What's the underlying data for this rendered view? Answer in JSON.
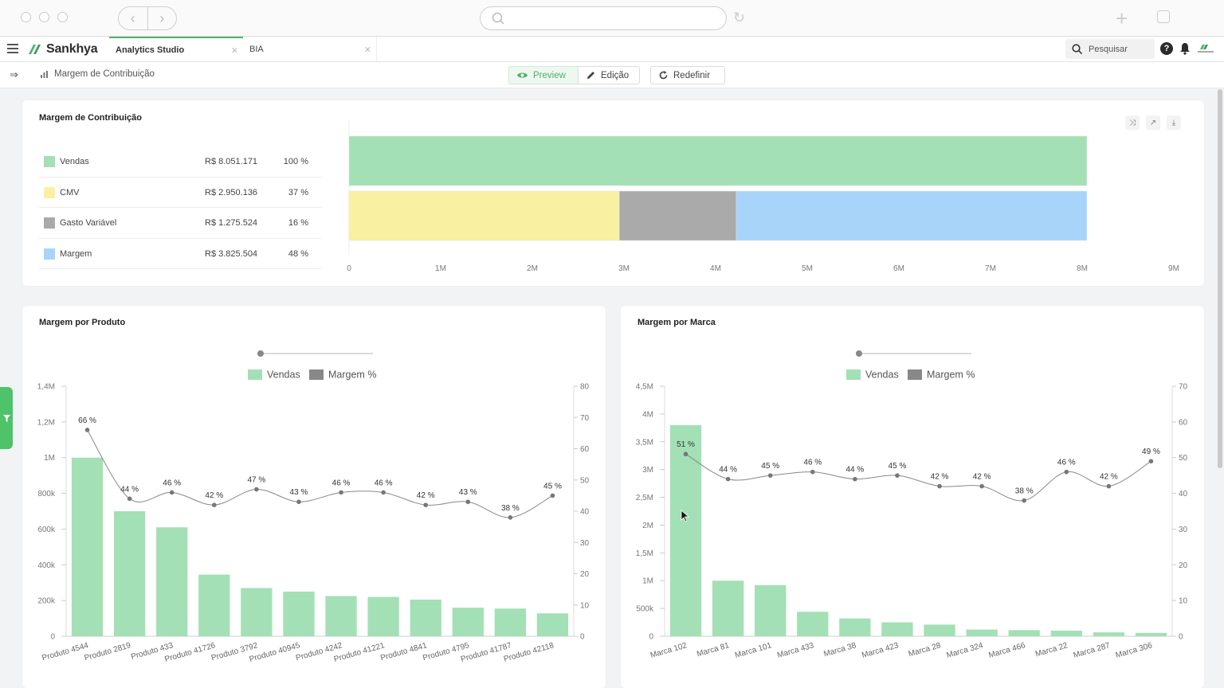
{
  "app": {
    "brand": "Sankhya",
    "tabs": [
      {
        "label": "Analytics Studio",
        "active": true
      },
      {
        "label": "BIA",
        "active": false
      }
    ],
    "search_placeholder": "Pesquisar"
  },
  "toolbar": {
    "breadcrumb": "Margem de Contribuição",
    "preview_label": "Preview",
    "edit_label": "Edição",
    "reset_label": "Redefinir"
  },
  "colors": {
    "vendas": "#a3e0b5",
    "cmv": "#faf0a2",
    "gasto": "#aaaaaa",
    "margem": "#a8d4fa",
    "accent": "#4fb36a",
    "line": "#888888"
  },
  "summary": {
    "title": "Margem de Contribuição",
    "rows": [
      {
        "name": "Vendas",
        "value": "R$ 8.051.171",
        "pct": "100 %",
        "color": "#a3e0b5"
      },
      {
        "name": "CMV",
        "value": "R$ 2.950.136",
        "pct": "37 %",
        "color": "#faf0a2"
      },
      {
        "name": "Gasto Variável",
        "value": "R$ 1.275.524",
        "pct": "16 %",
        "color": "#aaaaaa"
      },
      {
        "name": "Margem",
        "value": "R$ 3.825.504",
        "pct": "48 %",
        "color": "#a8d4fa"
      }
    ]
  },
  "chart_data": [
    {
      "type": "bar",
      "title": "Margem de Contribuição",
      "orientation": "horizontal",
      "stacked_rows": [
        [
          {
            "name": "Vendas",
            "value": 8051171
          }
        ],
        [
          {
            "name": "CMV",
            "value": 2950136
          },
          {
            "name": "Gasto Variável",
            "value": 1275524
          },
          {
            "name": "Margem",
            "value": 3825504
          }
        ]
      ],
      "xlim": [
        0,
        9000000
      ],
      "xticks": [
        "0",
        "1M",
        "2M",
        "3M",
        "4M",
        "5M",
        "6M",
        "7M",
        "8M",
        "9M"
      ]
    },
    {
      "type": "bar",
      "title": "Margem por Produto",
      "legend": [
        "Vendas",
        "Margem %"
      ],
      "categories": [
        "Produto 4544",
        "Produto 2819",
        "Produto 433",
        "Produto 41726",
        "Produto 3792",
        "Produto 40945",
        "Produto 4242",
        "Produto 41221",
        "Produto 4841",
        "Produto 4795",
        "Produto 41787",
        "Produto 42118"
      ],
      "series": [
        {
          "name": "Vendas",
          "kind": "bar",
          "values": [
            1000000,
            700000,
            610000,
            345000,
            270000,
            250000,
            225000,
            220000,
            205000,
            160000,
            155000,
            128000
          ]
        },
        {
          "name": "Margem %",
          "kind": "line",
          "values": [
            66,
            44,
            46,
            42,
            47,
            43,
            46,
            46,
            42,
            43,
            38,
            45
          ],
          "labels": [
            "66 %",
            "44 %",
            "46 %",
            "42 %",
            "47 %",
            "43 %",
            "46 %",
            "46 %",
            "42 %",
            "43 %",
            "38 %",
            "45 %"
          ]
        }
      ],
      "ylim": [
        0,
        1400000
      ],
      "yticks": [
        "0",
        "200k",
        "400k",
        "600k",
        "800k",
        "1M",
        "1,2M",
        "1,4M"
      ],
      "y2lim": [
        0,
        80
      ],
      "y2ticks": [
        "0",
        "10",
        "20",
        "30",
        "40",
        "50",
        "60",
        "70",
        "80"
      ]
    },
    {
      "type": "bar",
      "title": "Margem por Marca",
      "legend": [
        "Vendas",
        "Margem %"
      ],
      "categories": [
        "Marca 102",
        "Marca 81",
        "Marca 101",
        "Marca 433",
        "Marca 38",
        "Marca 423",
        "Marca 28",
        "Marca 324",
        "Marca 466",
        "Marca 22",
        "Marca 287",
        "Marca 306"
      ],
      "series": [
        {
          "name": "Vendas",
          "kind": "bar",
          "values": [
            3800000,
            1000000,
            920000,
            440000,
            320000,
            250000,
            210000,
            120000,
            110000,
            100000,
            70000,
            60000
          ]
        },
        {
          "name": "Margem %",
          "kind": "line",
          "values": [
            51,
            44,
            45,
            46,
            44,
            45,
            42,
            42,
            38,
            46,
            42,
            49
          ],
          "labels": [
            "51 %",
            "44 %",
            "45 %",
            "46 %",
            "44 %",
            "45 %",
            "42 %",
            "42 %",
            "38 %",
            "46 %",
            "42 %",
            "49 %"
          ]
        }
      ],
      "ylim": [
        0,
        4500000
      ],
      "yticks": [
        "0",
        "500k",
        "1M",
        "1,5M",
        "2M",
        "2,5M",
        "3M",
        "3,5M",
        "4M",
        "4,5M"
      ],
      "y2lim": [
        0,
        70
      ],
      "y2ticks": [
        "0",
        "10",
        "20",
        "30",
        "40",
        "50",
        "60",
        "70"
      ]
    }
  ]
}
